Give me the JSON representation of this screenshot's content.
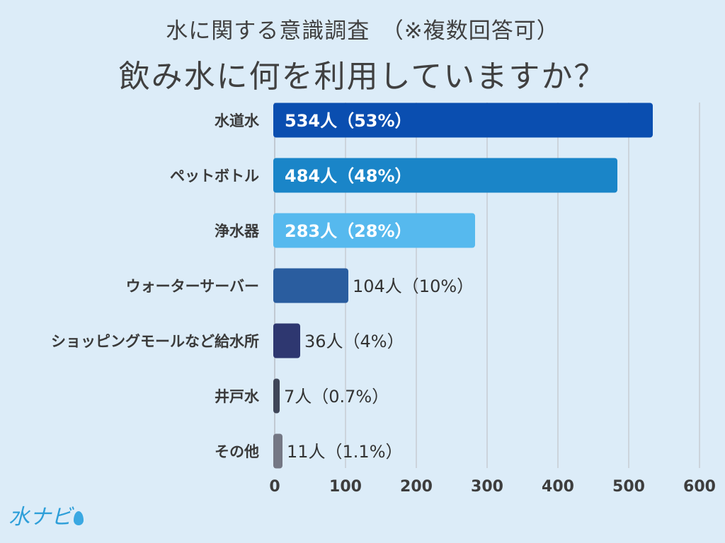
{
  "header": {
    "title": "水に関する意識調査　（※複数回答可）",
    "subtitle": "飲み水に何を利用していますか？"
  },
  "logo": {
    "text": "水ナビ"
  },
  "chart_data": {
    "type": "bar",
    "orientation": "horizontal",
    "categories": [
      "水道水",
      "ペットボトル",
      "浄水器",
      "ウォーターサーバー",
      "ショッピングモールなど給水所",
      "井戸水",
      "その他"
    ],
    "values": [
      534,
      484,
      283,
      104,
      36,
      7,
      11
    ],
    "value_labels": [
      "534人（53%）",
      "484人（48%）",
      "283人（28%）",
      "104人（10%）",
      "36人（4%）",
      "7人（0.7%）",
      "11人（1.1%）"
    ],
    "bar_colors": [
      "#0a4eb0",
      "#1a85c8",
      "#56b9ee",
      "#2a5d9f",
      "#2e3770",
      "#3f4658",
      "#747784"
    ],
    "xlim": [
      0,
      600
    ],
    "xticks": [
      0,
      100,
      200,
      300,
      400,
      500,
      600
    ],
    "grid": true
  }
}
